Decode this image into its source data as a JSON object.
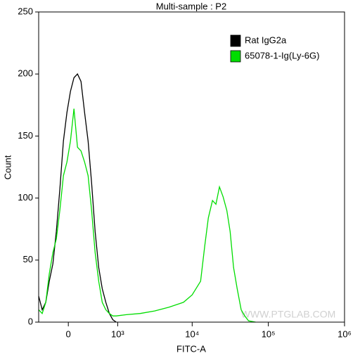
{
  "chart_data": {
    "type": "line",
    "title": "Multi-sample : P2",
    "xlabel": "FITC-A",
    "ylabel": "Count",
    "xscale": "asinh",
    "xlim": [
      -484,
      1000000
    ],
    "ylim": [
      0,
      250
    ],
    "xticks": [
      0,
      {
        "value": 1000,
        "label": "10³"
      },
      {
        "value": 10000,
        "label": "10⁴"
      },
      {
        "value": 100000,
        "label": "10⁵"
      },
      {
        "value": 1000000,
        "label": "10⁶"
      }
    ],
    "yticks": [
      0,
      50,
      100,
      150,
      200,
      250
    ],
    "legend": "upper right",
    "annotation": "WWW.PTGLAB.COM",
    "series": [
      {
        "name": "Rat IgG2a",
        "color": "#000000",
        "x": [
          -484,
          -414,
          -349,
          -288,
          -230,
          -176,
          -123,
          -71,
          -20,
          30,
          81,
          133,
          186,
          242,
          300,
          362,
          428,
          499,
          576,
          659,
          749,
          847,
          953
        ],
        "values": [
          21,
          10,
          16,
          33,
          47,
          73,
          107,
          146,
          169,
          186,
          197,
          200,
          194,
          169,
          146,
          112,
          73,
          44,
          27,
          16,
          7,
          2,
          0
        ]
      },
      {
        "name": "65078-1-Ig(Ly-6G)",
        "color": "#00dd00",
        "x": [
          -484,
          -414,
          -349,
          -288,
          -230,
          -176,
          -123,
          -71,
          -20,
          30,
          81,
          133,
          186,
          242,
          300,
          362,
          428,
          499,
          576,
          659,
          749,
          847,
          953,
          1330,
          2060,
          3200,
          4960,
          7700,
          10000,
          12900,
          14600,
          16300,
          18500,
          20500,
          22800,
          25500,
          28500,
          31500,
          35000,
          39000,
          44000,
          49000,
          55000,
          68000
        ],
        "values": [
          10,
          7,
          16,
          39,
          56,
          67,
          90,
          118,
          129,
          146,
          172,
          141,
          138,
          129,
          118,
          90,
          56,
          33,
          16,
          10,
          7,
          5,
          5,
          6,
          7,
          9,
          12,
          16,
          22,
          33,
          61,
          84,
          98,
          95,
          109,
          101,
          90,
          73,
          44,
          27,
          10,
          5,
          1,
          0
        ]
      }
    ]
  }
}
